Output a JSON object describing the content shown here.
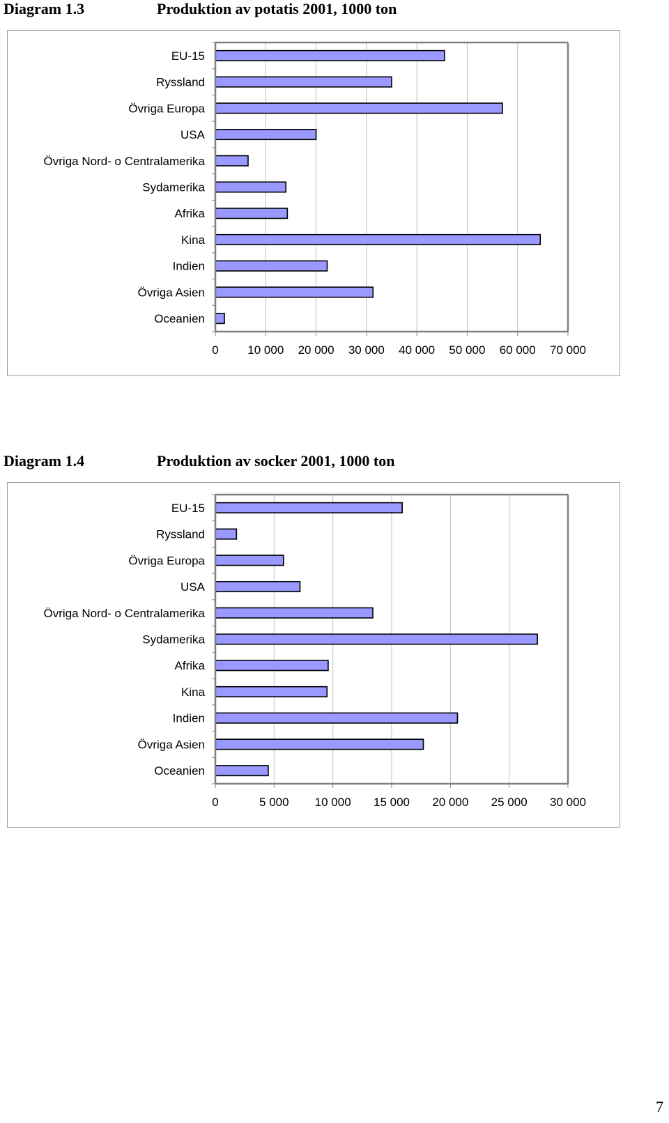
{
  "charts": [
    {
      "diagram_label": "Diagram 1.3",
      "heading": "Produktion av potatis 2001, 1000 ton"
    },
    {
      "diagram_label": "Diagram 1.4",
      "heading": "Produktion av socker 2001, 1000 ton"
    }
  ],
  "page_number": "7",
  "colors": {
    "bar_fill": "#9999ff",
    "bar_stroke": "#000000",
    "gridline": "#c0c0c0",
    "axis": "#808080"
  },
  "chart_data": [
    {
      "type": "bar",
      "orientation": "horizontal",
      "title": "Produktion av potatis 2001, 1000 ton",
      "categories": [
        "EU-15",
        "Ryssland",
        "Övriga Europa",
        "USA",
        "Övriga Nord- o Centralamerika",
        "Sydamerika",
        "Afrika",
        "Kina",
        "Indien",
        "Övriga Asien",
        "Oceanien"
      ],
      "values": [
        45500,
        35000,
        57000,
        20000,
        6500,
        14000,
        14300,
        64500,
        22200,
        31300,
        1800
      ],
      "xlim": [
        0,
        70000
      ],
      "xticks": [
        0,
        10000,
        20000,
        30000,
        40000,
        50000,
        60000,
        70000
      ],
      "xtick_labels": [
        "0",
        "10 000",
        "20 000",
        "30 000",
        "40 000",
        "50 000",
        "60 000",
        "70 000"
      ],
      "grid": true,
      "legend": false
    },
    {
      "type": "bar",
      "orientation": "horizontal",
      "title": "Produktion av socker 2001, 1000 ton",
      "categories": [
        "EU-15",
        "Ryssland",
        "Övriga Europa",
        "USA",
        "Övriga Nord- o Centralamerika",
        "Sydamerika",
        "Afrika",
        "Kina",
        "Indien",
        "Övriga Asien",
        "Oceanien"
      ],
      "values": [
        15900,
        1800,
        5800,
        7200,
        13400,
        27400,
        9600,
        9500,
        20600,
        17700,
        4500
      ],
      "xlim": [
        0,
        30000
      ],
      "xticks": [
        0,
        5000,
        10000,
        15000,
        20000,
        25000,
        30000
      ],
      "xtick_labels": [
        "0",
        "5 000",
        "10 000",
        "15 000",
        "20 000",
        "25 000",
        "30 000"
      ],
      "grid": true,
      "legend": false
    }
  ]
}
